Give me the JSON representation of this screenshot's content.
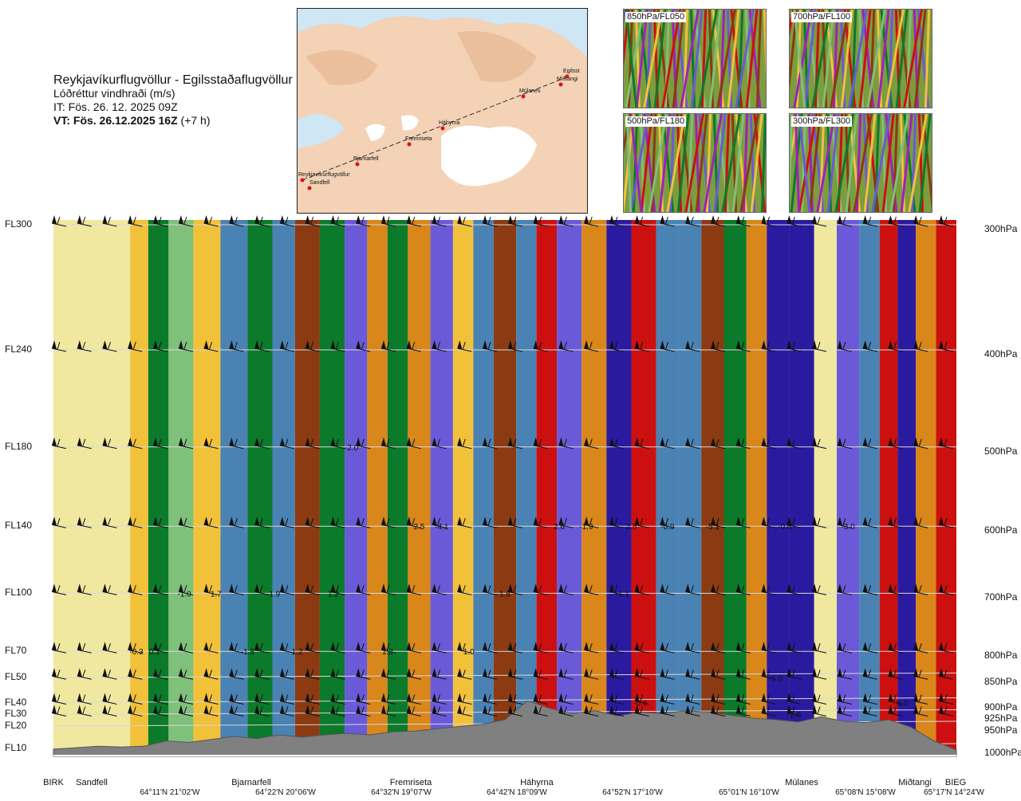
{
  "header": {
    "title": "Reykjavíkurflugvöllur - Egilsstaðaflugvöllur",
    "subtitle": "Lóðréttur vindhraði (m/s)",
    "issue_time": "IT: Fös. 26. 12. 2025 09Z",
    "valid_time_bold": "VT: Fös. 26.12.2025 16Z",
    "valid_time_rest": " (+7 h)"
  },
  "map": {
    "waypoints": [
      "Reykjavíkurflugvöllur",
      "Sandfell",
      "Bjarnarfell",
      "Fremriseta",
      "Háhyrna",
      "Múlanes",
      "Miðtangi",
      "Egilsst"
    ]
  },
  "thumbnails": [
    {
      "label": "850hPa/FL050"
    },
    {
      "label": "700hPa/FL100"
    },
    {
      "label": "500hPa/FL180"
    },
    {
      "label": "300hPa/FL300"
    }
  ],
  "chart_data": {
    "type": "heatmap",
    "title": "Reykjavíkurflugvöllur - Egilsstaðaflugvöllur",
    "variable": "Lóðréttur vindhraði (m/s)",
    "y_axis_left": [
      "FL300",
      "FL240",
      "FL180",
      "FL140",
      "FL100",
      "FL70",
      "FL50",
      "FL40",
      "FL30",
      "FL20",
      "FL10"
    ],
    "y_axis_right": [
      "300hPa",
      "400hPa",
      "500hPa",
      "600hPa",
      "700hPa",
      "800hPa",
      "850hPa",
      "900hPa",
      "925hPa",
      "950hPa",
      "1000hPa"
    ],
    "pressure_levels_hpa": [
      300,
      400,
      500,
      600,
      700,
      800,
      850,
      900,
      925,
      950,
      1000
    ],
    "x_waypoints": [
      "BIRK",
      "Sandfell",
      "Bjarnarfell",
      "Fremriseta",
      "Háhyrna",
      "Múlanes",
      "Miðtangi",
      "BIEG"
    ],
    "x_coordinates": [
      "64°11'N 21°02'W",
      "64°22'N 20°06'W",
      "64°32'N 19°07'W",
      "64°42'N 18°09'W",
      "64°52'N 17°10'W",
      "65°01'N 16°10'W",
      "65°08'N 15°08'W",
      "65°17'N 14°24'W"
    ],
    "route_fraction": [
      0.0,
      0.05,
      0.2,
      0.36,
      0.5,
      0.7,
      0.94,
      1.0
    ],
    "band_centers": [
      0.015,
      0.045,
      0.075,
      0.095,
      0.115,
      0.14,
      0.17,
      0.2,
      0.23,
      0.255,
      0.28,
      0.31,
      0.335,
      0.36,
      0.38,
      0.405,
      0.43,
      0.455,
      0.475,
      0.5,
      0.525,
      0.545,
      0.57,
      0.6,
      0.625,
      0.655,
      0.68,
      0.705,
      0.73,
      0.755,
      0.78,
      0.8,
      0.83,
      0.855,
      0.88,
      0.905,
      0.925,
      0.945,
      0.965,
      0.99
    ],
    "band_values": [
      0.3,
      0.4,
      0.3,
      0.8,
      -0.5,
      -0.3,
      0.6,
      -1.3,
      -0.6,
      -1.4,
      1.9,
      -0.8,
      -1.5,
      1.2,
      -0.6,
      1.5,
      -1.8,
      0.9,
      -1.0,
      1.8,
      -1.3,
      2.1,
      -1.5,
      1.4,
      -2.0,
      2.5,
      -1.4,
      -1.2,
      1.9,
      -0.7,
      1.5,
      -2.6,
      -2.2,
      0.4,
      -1.7,
      -1.4,
      2.4,
      -2.0,
      1.2,
      3.0
    ],
    "color_scale_values": [
      -3.0,
      -2.0,
      -1.5,
      -1.0,
      -0.5,
      -0.25,
      0.25,
      0.5,
      1.0,
      1.5,
      2.0,
      3.0
    ],
    "color_scale": [
      "#000066",
      "#2a1aa0",
      "#6a5ad8",
      "#4a82b4",
      "#0b7a2a",
      "#7fc07a",
      "#e9f1d8",
      "#f1e8a0",
      "#f2c13a",
      "#d9861a",
      "#8b3a12",
      "#cc1010"
    ],
    "contour_labels": [
      {
        "text": "-2.0",
        "x": 0.33,
        "p": 500
      },
      {
        "text": "2.5",
        "x": 0.405,
        "p": 600
      },
      {
        "text": "-4.1",
        "x": 0.43,
        "p": 600
      },
      {
        "text": "2.6",
        "x": 0.56,
        "p": 600
      },
      {
        "text": "-1.9",
        "x": 0.59,
        "p": 600
      },
      {
        "text": "2.5",
        "x": 0.64,
        "p": 600
      },
      {
        "text": "-0.9",
        "x": 0.68,
        "p": 600
      },
      {
        "text": "-5.1",
        "x": 0.73,
        "p": 600
      },
      {
        "text": "-0.6",
        "x": 0.81,
        "p": 600
      },
      {
        "text": "-3.0",
        "x": 0.88,
        "p": 600
      },
      {
        "text": "-1.0",
        "x": 0.145,
        "p": 700
      },
      {
        "text": "1.7",
        "x": 0.18,
        "p": 700
      },
      {
        "text": "1.9",
        "x": 0.245,
        "p": 700
      },
      {
        "text": "1.2",
        "x": 0.31,
        "p": 700
      },
      {
        "text": "1.8",
        "x": 0.5,
        "p": 700
      },
      {
        "text": "-1.1",
        "x": 0.63,
        "p": 700
      },
      {
        "text": "-0.3",
        "x": 0.092,
        "p": 800
      },
      {
        "text": "0.1",
        "x": 0.112,
        "p": 800
      },
      {
        "text": "-1.8",
        "x": 0.215,
        "p": 800
      },
      {
        "text": "1.2",
        "x": 0.27,
        "p": 800
      },
      {
        "text": "1.2",
        "x": 0.37,
        "p": 800
      },
      {
        "text": "1.0",
        "x": 0.46,
        "p": 800
      },
      {
        "text": "-1.0",
        "x": 0.8,
        "p": 850
      },
      {
        "text": "-0.6",
        "x": 0.65,
        "p": 900
      },
      {
        "text": "-1.0",
        "x": 0.82,
        "p": 925
      },
      {
        "text": "0.0",
        "x": 0.94,
        "p": 900
      }
    ],
    "terrain_height_fraction": [
      0.01,
      0.03,
      0.05,
      0.04,
      0.05,
      0.12,
      0.1,
      0.14,
      0.18,
      0.15,
      0.2,
      0.17,
      0.2,
      0.22,
      0.2,
      0.24,
      0.25,
      0.28,
      0.31,
      0.34,
      0.4,
      0.65,
      0.55,
      0.48,
      0.52,
      0.45,
      0.5,
      0.48,
      0.52,
      0.5,
      0.46,
      0.42,
      0.4,
      0.37,
      0.44,
      0.38,
      0.36,
      0.4,
      0.3,
      0.12,
      0.0
    ]
  }
}
